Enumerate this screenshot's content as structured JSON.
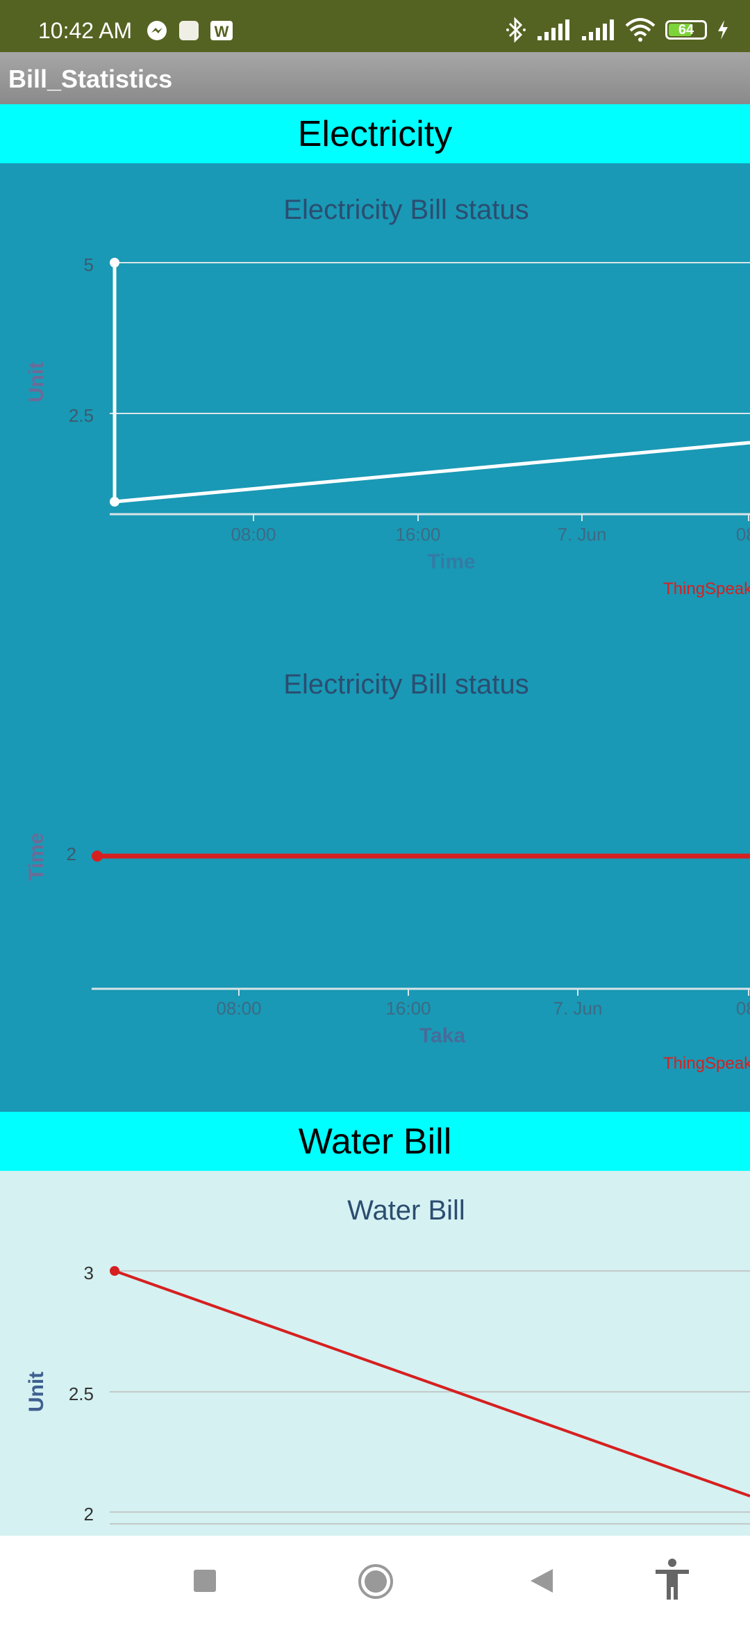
{
  "status_bar": {
    "time": "10:42 AM",
    "battery": "64",
    "icons": [
      "messenger-icon",
      "square-notification-icon",
      "w-app-icon",
      "bluetooth-icon",
      "signal-icon",
      "signal-icon",
      "wifi-icon",
      "battery-icon",
      "charging-icon"
    ]
  },
  "app_bar": {
    "title": "Bill_Statistics"
  },
  "sections": {
    "electricity": "Electricity",
    "water": "Water Bill"
  },
  "colors": {
    "status_bar": "#556322",
    "section_header": "#00ffff",
    "electricity_panel": "#1999b5",
    "water_panel": "#d5f1f2",
    "line_white": "#ffffff",
    "line_red": "#d62020",
    "credit": "#d62020"
  },
  "chart_data": [
    {
      "type": "line",
      "title": "Electricity Bill status",
      "xlabel": "Time",
      "ylabel": "Unit",
      "x_tick_labels": [
        "08:00",
        "16:00",
        "7. Jun",
        "08:"
      ],
      "y_tick_labels": [
        "5",
        "2.5"
      ],
      "ylim": [
        0,
        5
      ],
      "grid": true,
      "credit": "ThingSpeak",
      "series": [
        {
          "points": [
            [
              0,
              5
            ],
            [
              0,
              1
            ],
            [
              1.25,
              2
            ]
          ]
        }
      ]
    },
    {
      "type": "line",
      "title": "Electricity Bill status",
      "xlabel": "Taka",
      "ylabel": "Time",
      "x_tick_labels": [
        "08:00",
        "16:00",
        "7. Jun",
        "08:"
      ],
      "y_tick_labels": [
        "2"
      ],
      "ylim": [
        1,
        3
      ],
      "grid": false,
      "credit": "ThingSpeak",
      "series": [
        {
          "points": [
            [
              0,
              2
            ],
            [
              1.25,
              2
            ]
          ]
        }
      ]
    },
    {
      "type": "line",
      "title": "Water Bill",
      "xlabel": "",
      "ylabel": "Unit",
      "x_tick_labels": [],
      "y_tick_labels": [
        "3",
        "2.5",
        "2"
      ],
      "ylim": [
        2,
        3
      ],
      "grid": true,
      "series": [
        {
          "points": [
            [
              0,
              3
            ],
            [
              1.25,
              2.07
            ]
          ]
        }
      ]
    }
  ],
  "nav": {
    "items": [
      "recents-icon",
      "home-icon",
      "back-icon",
      "accessibility-icon"
    ]
  }
}
